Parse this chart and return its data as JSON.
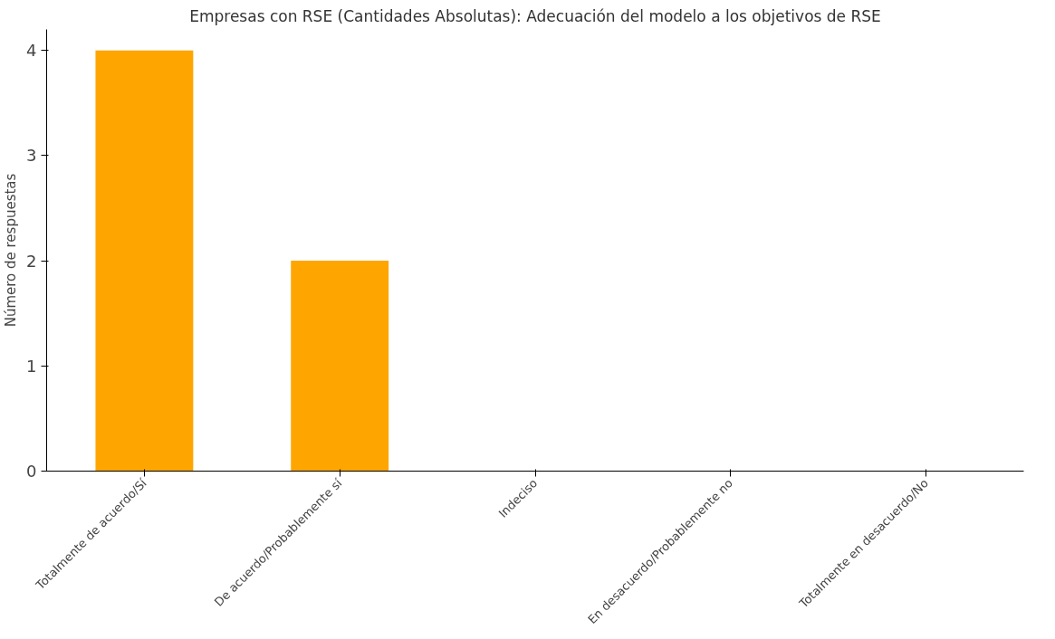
{
  "chart_data": {
    "type": "bar",
    "title": "Empresas con RSE (Cantidades Absolutas): Adecuación del modelo a los objetivos de RSE",
    "ylabel": "Número de respuestas",
    "categories": [
      "Totalmente de acuerdo/Sí",
      "De acuerdo/Probablemente sí",
      "Indeciso",
      "En desacuerdo/Probablemente no",
      "Totalmente en desacuerdo/No"
    ],
    "values": [
      4,
      2,
      0,
      0,
      0
    ],
    "color": "#ffa500",
    "ylim": [
      0,
      4.2
    ],
    "yticks": [
      0,
      1,
      2,
      3,
      4
    ],
    "grid": false
  }
}
